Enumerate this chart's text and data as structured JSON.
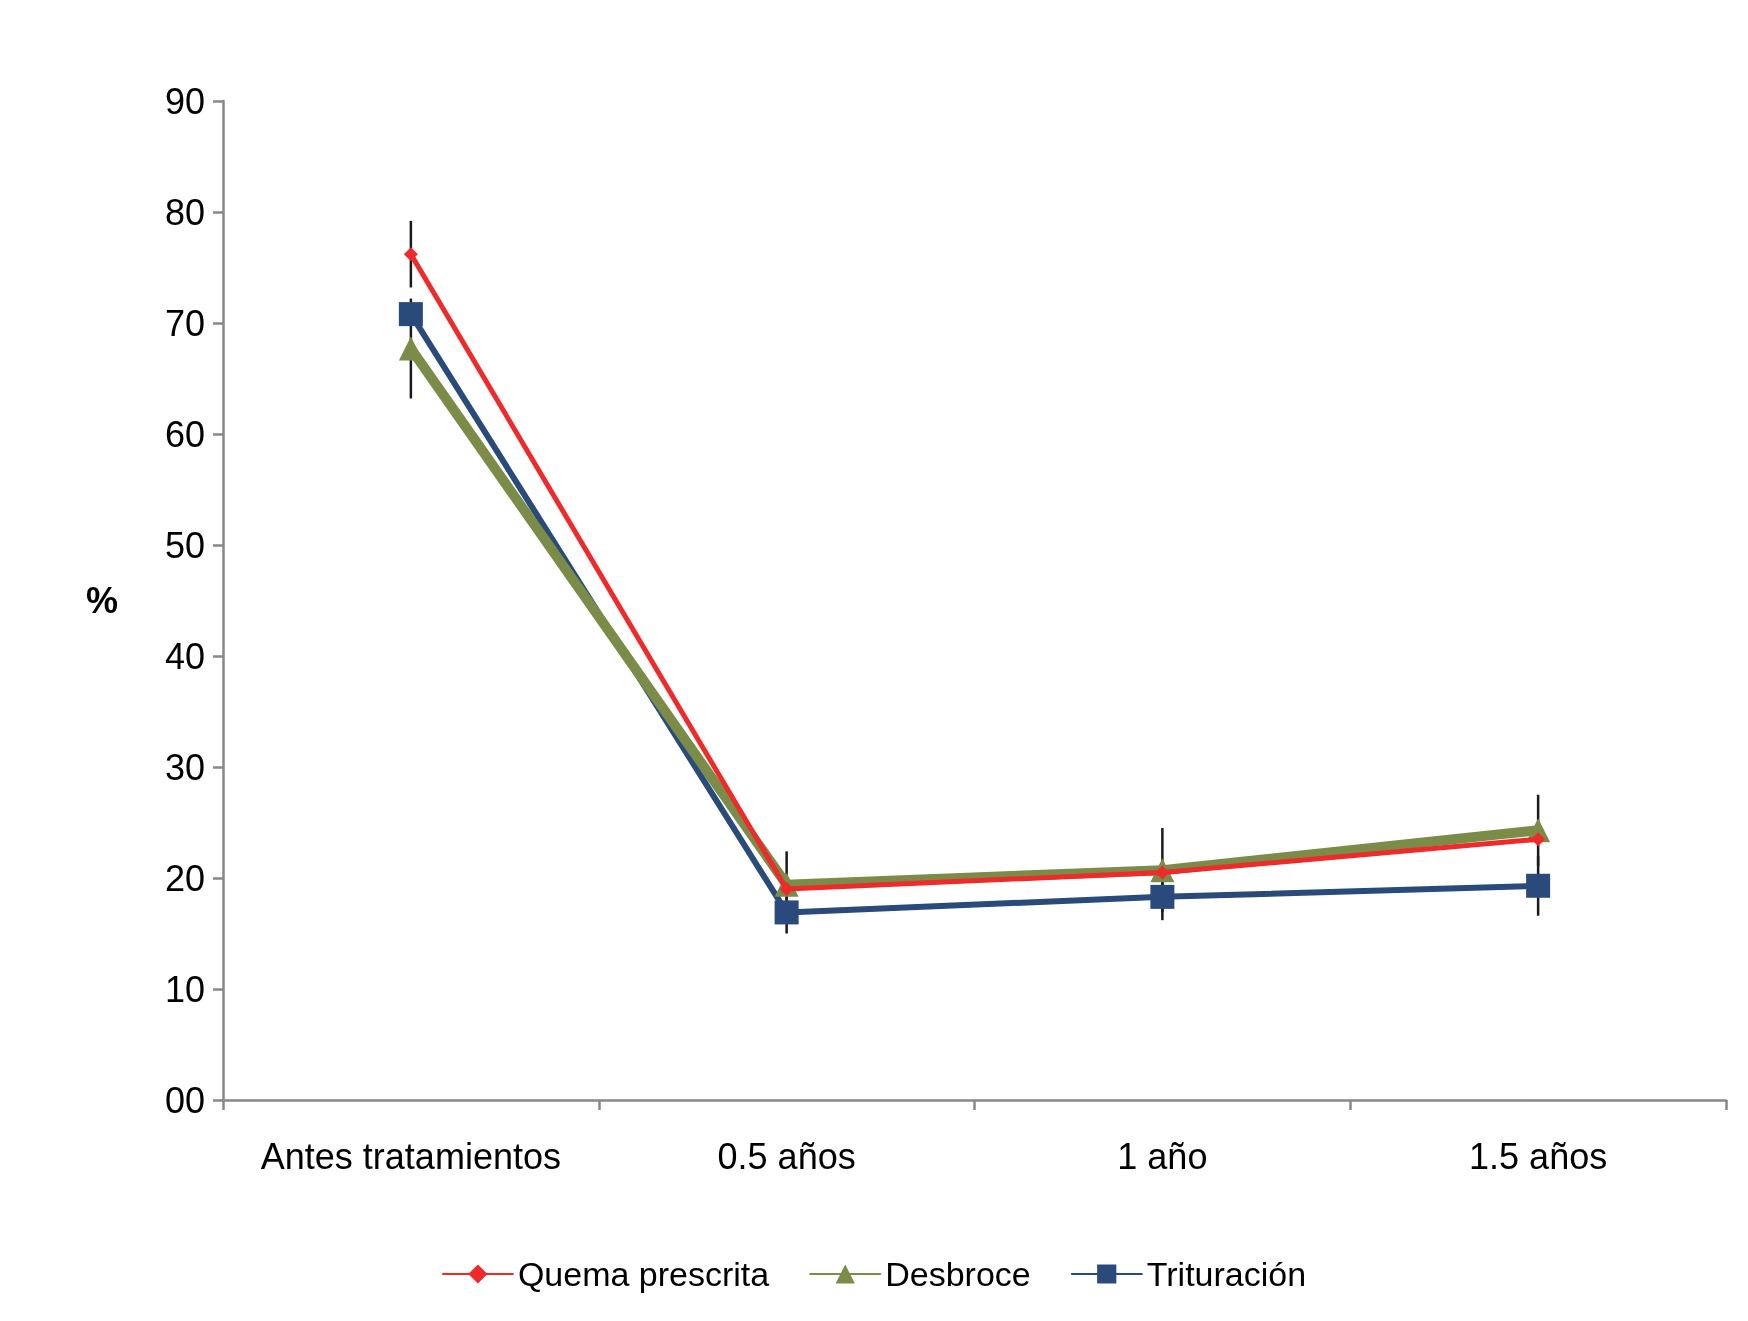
{
  "chart_data": {
    "type": "line",
    "ylabel": "%",
    "categories": [
      "Antes tratamientos",
      "0.5 años",
      "1 año",
      "1.5 años"
    ],
    "ylim": [
      0,
      90
    ],
    "yticks": [
      {
        "value": 0,
        "label": "00"
      },
      10,
      20,
      30,
      40,
      50,
      60,
      70,
      80,
      90
    ],
    "grid": false,
    "legend": "bottom",
    "line_style": "solid",
    "series": [
      {
        "name": "Quema prescrita",
        "color": "#ee2a2a",
        "marker": "diamond",
        "values": [
          76.2,
          19,
          20.5,
          23.5
        ],
        "errors": [
          3,
          null,
          null,
          null
        ]
      },
      {
        "name": "Desbroce",
        "color": "#7a8c47",
        "marker": "triangle",
        "values": [
          67.7,
          19.4,
          20.7,
          24.3
        ],
        "errors": [
          4.5,
          3,
          3.8,
          3.2
        ]
      },
      {
        "name": "Trituración",
        "color": "#294a7a",
        "marker": "square",
        "values": [
          70.8,
          16.9,
          18.3,
          19.3
        ],
        "errors": [
          null,
          1.9,
          2.1,
          2.7
        ]
      }
    ]
  }
}
